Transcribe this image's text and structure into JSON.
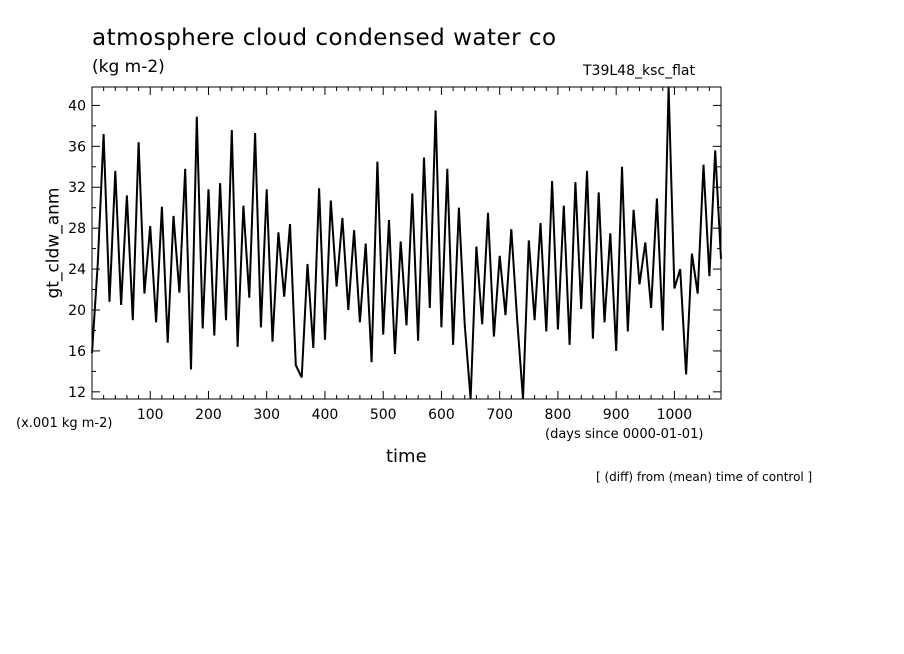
{
  "chart": {
    "title": "atmosphere cloud condensed water co",
    "units": "(kg m-2)",
    "run_label": "T39L48_ksc_flat",
    "scale_note": "(x.001 kg m-2)",
    "time_units": "(days since 0000-01-01)",
    "xlabel": "time",
    "ylabel": "gt_cldw_anm",
    "footnote": "[ (diff) from (mean) time of control ]"
  },
  "chart_data": {
    "type": "line",
    "title": "atmosphere cloud condensed water co",
    "xlabel": "time",
    "ylabel": "gt_cldw_anm",
    "xlim": [
      0,
      1080
    ],
    "ylim": [
      11.3,
      41.8
    ],
    "xticks": [
      100,
      200,
      300,
      400,
      500,
      600,
      700,
      800,
      900,
      1000
    ],
    "yticks": [
      12,
      16,
      20,
      24,
      28,
      32,
      36,
      40
    ],
    "grid": false,
    "series": [
      {
        "x": [
          0,
          10,
          20,
          30,
          40,
          50,
          60,
          70,
          80,
          90,
          100,
          110,
          120,
          130,
          140,
          150,
          160,
          170,
          180,
          190,
          200,
          210,
          220,
          230,
          240,
          250,
          260,
          270,
          280,
          290,
          300,
          310,
          320,
          330,
          340,
          350,
          360,
          370,
          380,
          390,
          400,
          410,
          420,
          430,
          440,
          450,
          460,
          470,
          480,
          490,
          500,
          510,
          520,
          530,
          540,
          550,
          560,
          570,
          580,
          590,
          600,
          610,
          620,
          630,
          640,
          650,
          660,
          670,
          680,
          690,
          700,
          710,
          720,
          730,
          740,
          750,
          760,
          770,
          780,
          790,
          800,
          810,
          820,
          830,
          840,
          850,
          860,
          870,
          880,
          890,
          900,
          910,
          920,
          930,
          940,
          950,
          960,
          970,
          980,
          990,
          1000,
          1010,
          1020,
          1030,
          1040,
          1050,
          1060,
          1070,
          1080
        ],
        "y": [
          15.8,
          24.6,
          37.2,
          20.8,
          33.6,
          20.5,
          31.2,
          19.0,
          36.4,
          21.6,
          28.2,
          18.8,
          30.1,
          16.8,
          29.2,
          21.7,
          33.8,
          14.2,
          38.9,
          18.2,
          31.8,
          17.5,
          32.4,
          19.0,
          37.6,
          16.4,
          30.2,
          21.2,
          37.3,
          18.3,
          31.8,
          16.9,
          27.6,
          21.3,
          28.4,
          14.6,
          13.4,
          24.5,
          16.3,
          31.9,
          17.1,
          30.7,
          22.3,
          29.0,
          20.0,
          27.8,
          18.8,
          26.5,
          14.9,
          34.5,
          17.6,
          28.8,
          15.7,
          26.7,
          18.5,
          31.4,
          17.0,
          34.9,
          20.2,
          39.5,
          18.3,
          33.8,
          16.6,
          30.0,
          18.6,
          11.2,
          26.2,
          18.6,
          29.5,
          17.4,
          25.3,
          19.5,
          27.9,
          19.0,
          11.1,
          26.8,
          19.0,
          28.5,
          17.9,
          32.6,
          18.1,
          30.2,
          16.6,
          32.5,
          20.1,
          33.6,
          17.2,
          31.5,
          18.8,
          27.5,
          16.0,
          34.0,
          17.9,
          29.8,
          22.5,
          26.6,
          20.2,
          30.9,
          18.0,
          41.8,
          22.1,
          24.0,
          13.7,
          25.5,
          21.6,
          34.2,
          23.3,
          35.6,
          25.0
        ]
      }
    ]
  }
}
